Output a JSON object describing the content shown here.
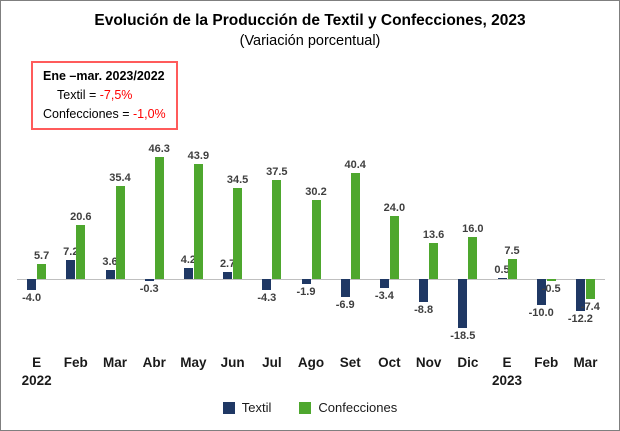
{
  "title": "Evolución de la Producción de Textil y Confecciones, 2023",
  "subtitle": "(Variación porcentual)",
  "annotation": {
    "line1": "Ene –mar. 2023/2022",
    "textil_label": "Textil =",
    "textil_value": "-7,5%",
    "confecciones_label": "Confecciones =",
    "confecciones_value": "-1,0%"
  },
  "colors": {
    "textil": "#1F3864",
    "confecciones": "#4EA72E",
    "negative_value": "#FF0000",
    "annotation_border": "#FF5B5B",
    "zero_line": "#BFBFBF"
  },
  "legend": [
    {
      "label": "Textil",
      "color": "#1F3864"
    },
    {
      "label": "Confecciones",
      "color": "#4EA72E"
    }
  ],
  "chart_data": {
    "type": "bar",
    "title": "Evolución de la Producción de Textil y Confecciones, 2023",
    "subtitle": "(Variación porcentual)",
    "categories": [
      "E",
      "Feb",
      "Mar",
      "Abr",
      "May",
      "Jun",
      "Jul",
      "Ago",
      "Set",
      "Oct",
      "Nov",
      "Dic",
      "E",
      "Feb",
      "Mar"
    ],
    "year_labels": [
      {
        "index": 0,
        "label": "2022"
      },
      {
        "index": 12,
        "label": "2023"
      }
    ],
    "series": [
      {
        "name": "Textil",
        "color": "#1F3864",
        "values": [
          -4.0,
          7.2,
          3.6,
          -0.3,
          4.2,
          2.7,
          -4.3,
          -1.9,
          -6.9,
          -3.4,
          -8.8,
          -18.5,
          0.5,
          -10.0,
          -12.2
        ]
      },
      {
        "name": "Confecciones",
        "color": "#4EA72E",
        "values": [
          5.7,
          20.6,
          35.4,
          46.3,
          43.9,
          34.5,
          37.5,
          30.2,
          40.4,
          24.0,
          13.6,
          16.0,
          7.5,
          -0.5,
          -7.4
        ]
      }
    ],
    "ylim": [
      -25,
      57
    ],
    "xlabel": "",
    "ylabel": "",
    "grid": false,
    "legend_position": "bottom"
  }
}
